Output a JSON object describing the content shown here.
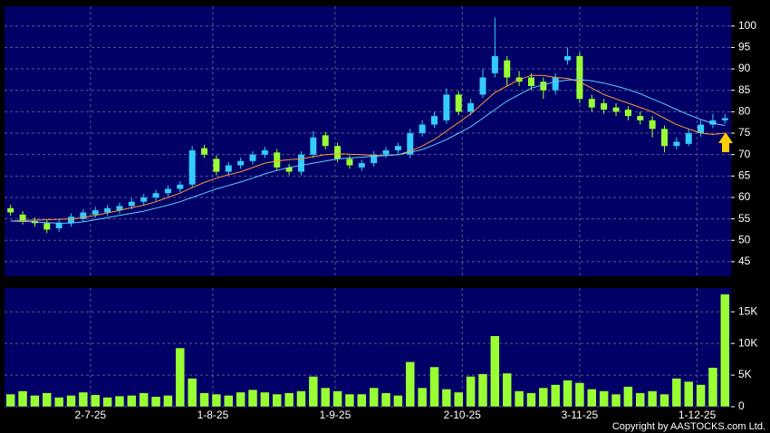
{
  "chart_data": [
    {
      "type": "candlestick",
      "up_color": "#33ccff",
      "down_color": "#99ff33",
      "open": [
        57.5,
        56,
        54.5,
        54,
        52.8,
        54,
        55,
        56,
        56.5,
        57,
        58,
        59,
        60,
        61,
        62,
        63,
        71.5,
        69,
        66,
        67.5,
        68.5,
        70,
        70.5,
        67,
        66,
        70,
        74.5,
        72,
        69,
        67,
        68,
        70,
        71,
        70,
        75,
        77,
        78,
        84,
        80,
        84,
        89,
        92,
        88,
        88,
        87,
        85,
        92,
        93,
        83,
        82,
        81,
        80.5,
        79,
        78,
        76,
        72,
        72.5,
        75,
        77,
        78
      ],
      "high": [
        58.3,
        56.8,
        55.3,
        54.8,
        54.8,
        56.3,
        57.3,
        57.8,
        58.3,
        58.8,
        59.8,
        60.8,
        61.8,
        62.8,
        63.8,
        72,
        72.3,
        69.8,
        68.3,
        69.3,
        70.8,
        71.8,
        71.3,
        67.8,
        70.8,
        75.5,
        75.3,
        72.8,
        69.8,
        68.8,
        70.8,
        71.8,
        72.8,
        76,
        78,
        80,
        85.5,
        84.8,
        83,
        90,
        102,
        93,
        89.5,
        89,
        88,
        89,
        95,
        93.8,
        84,
        83,
        82,
        81.3,
        80,
        79,
        76.8,
        74,
        76,
        78,
        79.5,
        79.5
      ],
      "low": [
        55.7,
        53.7,
        53.2,
        51.7,
        52,
        53.2,
        54.2,
        55.2,
        55.7,
        56.2,
        57.2,
        58.2,
        59.2,
        60.2,
        61.2,
        62.2,
        69.2,
        65.2,
        65.2,
        66.7,
        67.7,
        69.2,
        66.2,
        65.2,
        65.2,
        69.2,
        71.2,
        68.2,
        66.7,
        66.2,
        67.2,
        69.2,
        70.2,
        69.2,
        74.2,
        76.2,
        77.2,
        79.2,
        79.2,
        83.2,
        88,
        86,
        86,
        85,
        83,
        84,
        91,
        82,
        80,
        79.5,
        79,
        78,
        77,
        74,
        70.5,
        71.2,
        72,
        74.2,
        76.2,
        77.2
      ],
      "close": [
        56.5,
        54.5,
        54,
        52.5,
        54,
        55.5,
        56.5,
        57,
        57.5,
        58,
        59,
        60,
        61,
        62,
        63,
        71,
        70,
        66,
        67.5,
        68.5,
        70,
        71,
        67,
        66,
        70,
        74,
        72,
        69,
        67.5,
        68,
        70,
        71,
        72,
        75,
        77,
        79,
        84,
        80,
        82,
        88,
        93,
        88,
        87,
        86,
        85,
        88,
        93,
        83,
        81,
        80.5,
        80,
        79,
        78,
        76,
        72,
        73,
        75,
        77,
        78,
        78.5
      ],
      "series": [
        {
          "color": "#ff9933",
          "values": [
            54.5,
            54.6,
            54.7,
            54.8,
            54.9,
            55,
            55.3,
            55.8,
            56.4,
            57,
            57.6,
            58.2,
            59,
            60,
            61,
            62.3,
            63.5,
            64.5,
            65.3,
            66,
            67,
            68,
            68.5,
            68.8,
            69,
            69.5,
            70,
            70.2,
            70.1,
            70,
            69.8,
            69.8,
            70,
            70.8,
            72,
            73.5,
            75.5,
            77.5,
            79.5,
            82,
            84.5,
            86,
            87.5,
            88.5,
            88.5,
            88,
            87.8,
            87,
            85.5,
            84,
            83,
            82,
            81,
            80,
            78.5,
            77,
            76,
            75,
            74.7,
            75
          ]
        },
        {
          "color": "#66ccff",
          "values": [
            54.5,
            54.4,
            54.3,
            54.1,
            54,
            54,
            54.3,
            54.8,
            55.3,
            55.8,
            56.3,
            56.8,
            57.5,
            58.2,
            59,
            60,
            61,
            62,
            62.8,
            63.6,
            64.5,
            65.5,
            66.3,
            67,
            67.5,
            68,
            68.5,
            69,
            69.2,
            69.4,
            69.6,
            69.8,
            70,
            70.5,
            71.2,
            72.3,
            73.5,
            75,
            76.5,
            78.5,
            80.5,
            82.5,
            84,
            85.5,
            86.3,
            87,
            87.4,
            87.5,
            87.2,
            86.7,
            86,
            85.2,
            84.2,
            83,
            81.8,
            80.5,
            79.3,
            78.2,
            77.3,
            76.8
          ]
        }
      ],
      "ylim": [
        41.6,
        104.6
      ],
      "yticks": [
        45,
        50,
        55,
        60,
        65,
        70,
        75,
        80,
        85,
        90,
        95,
        100
      ],
      "grid": true
    },
    {
      "type": "bar",
      "color": "#99ff33",
      "values": [
        2000,
        2500,
        1800,
        2200,
        1500,
        1800,
        2300,
        1900,
        1500,
        1700,
        1800,
        2200,
        1600,
        1800,
        9300,
        4500,
        2200,
        2000,
        1800,
        2300,
        2700,
        2300,
        2000,
        2200,
        2500,
        4800,
        3000,
        2500,
        2000,
        2000,
        3000,
        2200,
        1800,
        7100,
        3000,
        6300,
        2800,
        2300,
        4800,
        5200,
        11200,
        5300,
        2500,
        2200,
        3000,
        3500,
        4200,
        3800,
        2800,
        2500,
        2000,
        3200,
        2200,
        2500,
        2000,
        4500,
        4000,
        3500,
        6200,
        17800
      ],
      "ylim": [
        0,
        18750
      ],
      "yticks": [
        0,
        {
          "value": 5000,
          "label": "5K"
        },
        {
          "value": 10000,
          "label": "10K"
        },
        {
          "value": 15000,
          "label": "15K"
        }
      ],
      "xticks": [
        {
          "value": 6.6,
          "label": "2-7-25"
        },
        {
          "value": 16.7,
          "label": "1-8-25"
        },
        {
          "value": 26.8,
          "label": "1-9-25"
        },
        {
          "value": 37.3,
          "label": "2-10-25"
        },
        {
          "value": 47,
          "label": "3-11-25"
        },
        {
          "value": 56.7,
          "label": "1-12-25"
        }
      ],
      "xlim": [
        -0.5,
        59.5
      ],
      "grid": true
    }
  ],
  "copyright": "Copyright by AASTOCKS.com Ltd."
}
